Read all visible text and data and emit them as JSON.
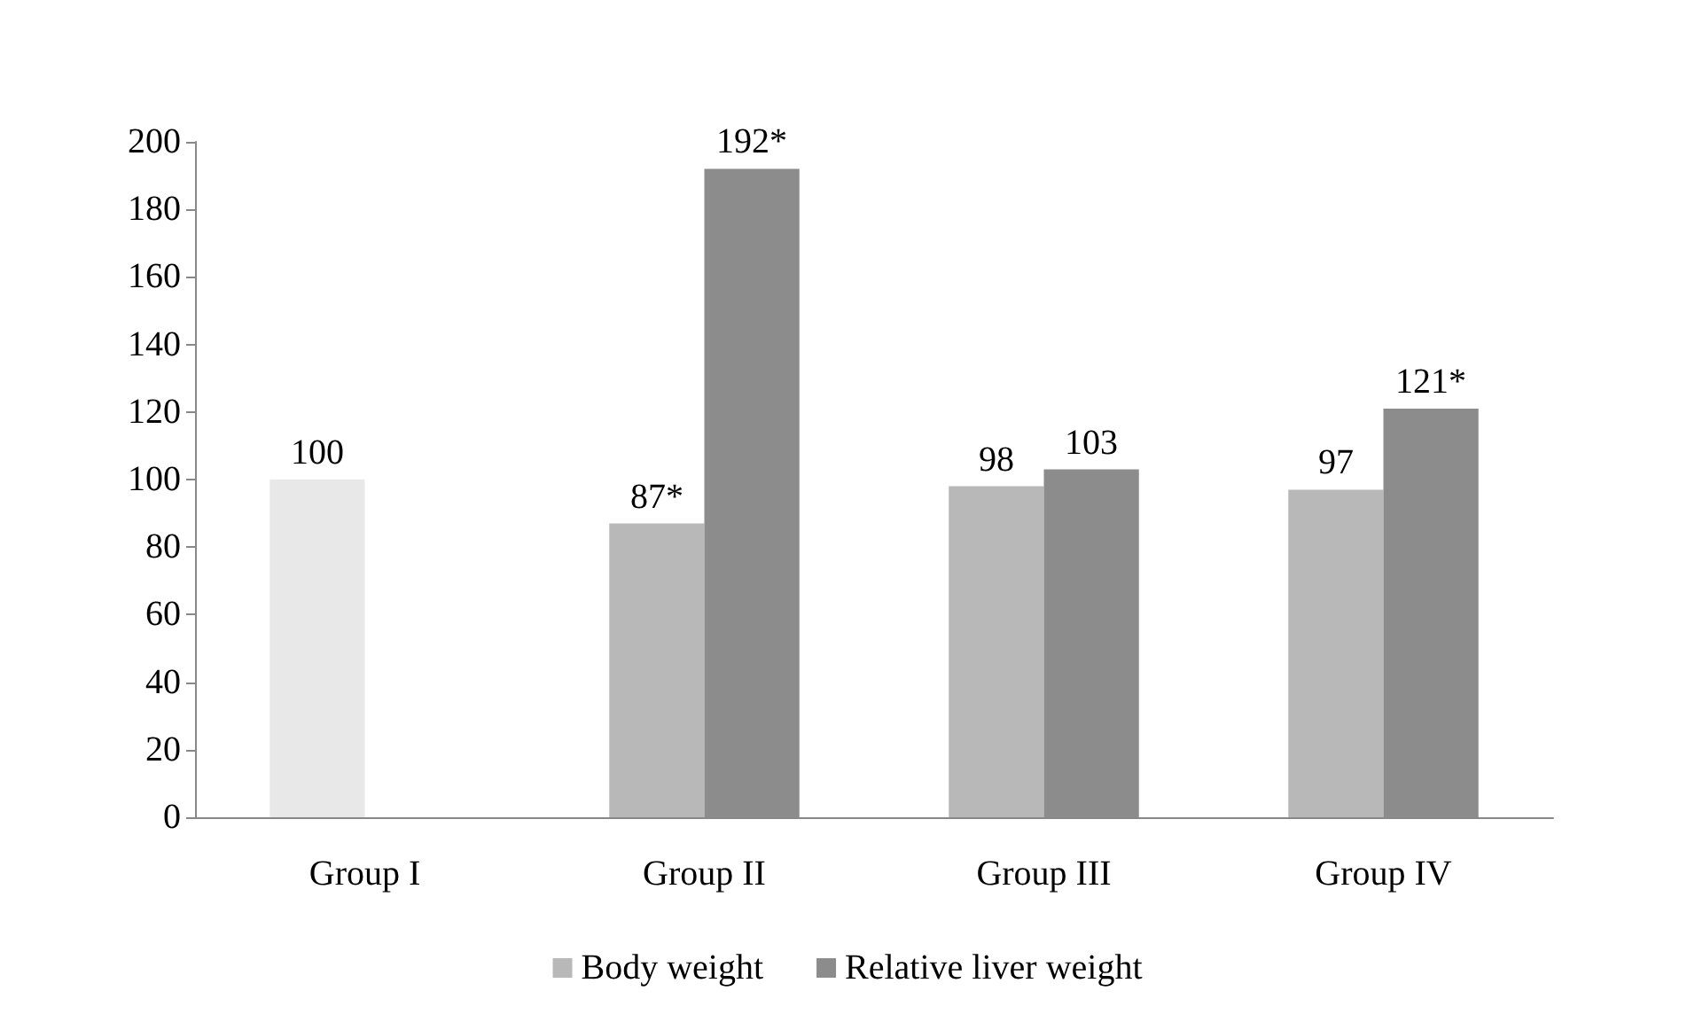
{
  "chart_data": {
    "type": "bar",
    "categories": [
      "Group I",
      "Group II",
      "Group III",
      "Group IV"
    ],
    "series": [
      {
        "name": "Body weight",
        "color": "#b8b8b8",
        "colors": [
          "#e8e8e8",
          "#b8b8b8",
          "#b8b8b8",
          "#b8b8b8"
        ],
        "values": [
          100,
          87,
          98,
          97
        ],
        "value_labels": [
          "100",
          "87*",
          "98",
          "97"
        ]
      },
      {
        "name": "Relative liver weight",
        "color": "#8c8c8c",
        "values": [
          null,
          192,
          103,
          121
        ],
        "value_labels": [
          null,
          "192*",
          "103",
          "121*"
        ]
      }
    ],
    "ylim": [
      0,
      200
    ],
    "yticks": [
      0,
      20,
      40,
      60,
      80,
      100,
      120,
      140,
      160,
      180,
      200
    ],
    "grid": false,
    "legend": "bottom"
  }
}
